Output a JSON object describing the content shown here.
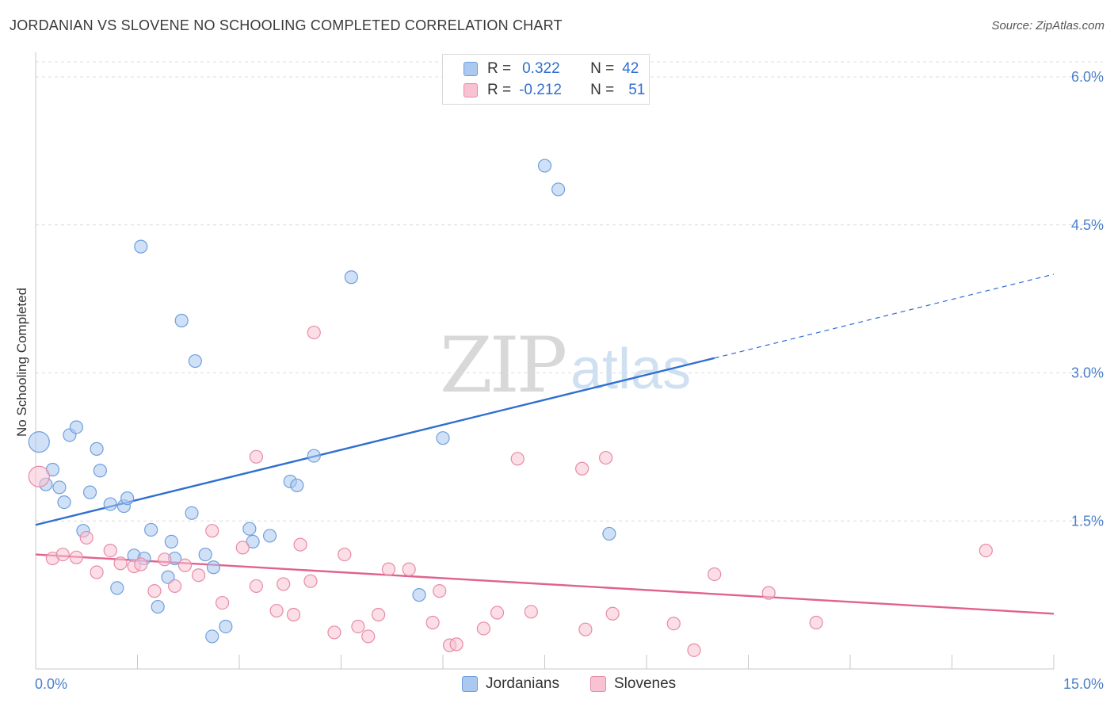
{
  "header": {
    "title": "JORDANIAN VS SLOVENE NO SCHOOLING COMPLETED CORRELATION CHART",
    "source": "Source: ZipAtlas.com"
  },
  "watermark": {
    "zip": "ZIP",
    "atlas": "atlas"
  },
  "legend": {
    "rows": [
      {
        "r_label": "R =",
        "r_value": "0.322",
        "n_label": "N =",
        "n_value": "42",
        "color": "#aac8f0",
        "border": "#6f9fdc"
      },
      {
        "r_label": "R =",
        "r_value": "-0.212",
        "n_label": "N =",
        "n_value": "51",
        "color": "#f8c2d2",
        "border": "#e78ba7"
      }
    ]
  },
  "bottom_legend": {
    "series1": "Jordanians",
    "series2": "Slovenes"
  },
  "chart_data": {
    "type": "scatter",
    "title": "JORDANIAN VS SLOVENE NO SCHOOLING COMPLETED CORRELATION CHART",
    "xlabel": "",
    "ylabel": "No Schooling Completed",
    "xlim": [
      0,
      15
    ],
    "ylim": [
      0,
      6.0
    ],
    "x_tick_labels": [
      "0.0%",
      "15.0%"
    ],
    "y_ticks": [
      1.5,
      3.0,
      4.5,
      6.0
    ],
    "y_tick_labels": [
      "1.5%",
      "3.0%",
      "4.5%",
      "6.0%"
    ],
    "grid": true,
    "legend_position": "top-center",
    "series": [
      {
        "name": "Jordanians",
        "color": "#6f9fdc",
        "fill": "#aac8f0",
        "trend": {
          "x0": 0,
          "y0": 1.46,
          "x1": 10.0,
          "y1": 3.15,
          "dash_to_x": 15.0,
          "dash_to_y": 4.0
        },
        "points": [
          [
            0.05,
            2.3
          ],
          [
            0.15,
            1.87
          ],
          [
            0.25,
            2.02
          ],
          [
            0.35,
            1.84
          ],
          [
            0.42,
            1.69
          ],
          [
            0.5,
            2.37
          ],
          [
            0.6,
            2.45
          ],
          [
            0.7,
            1.4
          ],
          [
            0.8,
            1.79
          ],
          [
            0.9,
            2.23
          ],
          [
            0.95,
            2.01
          ],
          [
            1.1,
            1.67
          ],
          [
            1.2,
            0.82
          ],
          [
            1.3,
            1.65
          ],
          [
            1.35,
            1.73
          ],
          [
            1.45,
            1.15
          ],
          [
            1.55,
            4.28
          ],
          [
            1.6,
            1.12
          ],
          [
            1.7,
            1.41
          ],
          [
            1.8,
            0.63
          ],
          [
            1.95,
            0.93
          ],
          [
            2.0,
            1.29
          ],
          [
            2.05,
            1.12
          ],
          [
            2.15,
            3.53
          ],
          [
            2.3,
            1.58
          ],
          [
            2.35,
            3.12
          ],
          [
            2.5,
            1.16
          ],
          [
            2.6,
            0.33
          ],
          [
            2.62,
            1.03
          ],
          [
            2.8,
            0.43
          ],
          [
            3.15,
            1.42
          ],
          [
            3.2,
            1.29
          ],
          [
            3.45,
            1.35
          ],
          [
            3.75,
            1.9
          ],
          [
            3.85,
            1.86
          ],
          [
            4.1,
            2.16
          ],
          [
            4.65,
            3.97
          ],
          [
            5.65,
            0.75
          ],
          [
            6.0,
            2.34
          ],
          [
            7.5,
            5.1
          ],
          [
            7.7,
            4.86
          ],
          [
            8.45,
            1.37
          ]
        ]
      },
      {
        "name": "Slovenes",
        "color": "#e78ba7",
        "fill": "#f8c2d2",
        "trend": {
          "x0": 0,
          "y0": 1.16,
          "x1": 15.0,
          "y1": 0.56
        },
        "points": [
          [
            0.05,
            1.95
          ],
          [
            0.25,
            1.12
          ],
          [
            0.4,
            1.16
          ],
          [
            0.6,
            1.13
          ],
          [
            0.75,
            1.33
          ],
          [
            0.9,
            0.98
          ],
          [
            1.1,
            1.2
          ],
          [
            1.25,
            1.07
          ],
          [
            1.45,
            1.04
          ],
          [
            1.55,
            1.06
          ],
          [
            1.75,
            0.79
          ],
          [
            1.9,
            1.11
          ],
          [
            2.05,
            0.84
          ],
          [
            2.2,
            1.05
          ],
          [
            2.4,
            0.95
          ],
          [
            2.6,
            1.4
          ],
          [
            2.75,
            0.67
          ],
          [
            3.05,
            1.23
          ],
          [
            3.25,
            0.84
          ],
          [
            3.25,
            2.15
          ],
          [
            3.55,
            0.59
          ],
          [
            3.65,
            0.86
          ],
          [
            3.8,
            0.55
          ],
          [
            3.9,
            1.26
          ],
          [
            4.05,
            0.89
          ],
          [
            4.1,
            3.41
          ],
          [
            4.4,
            0.37
          ],
          [
            4.55,
            1.16
          ],
          [
            4.75,
            0.43
          ],
          [
            4.9,
            0.33
          ],
          [
            5.05,
            0.55
          ],
          [
            5.2,
            1.01
          ],
          [
            5.5,
            1.01
          ],
          [
            5.85,
            0.47
          ],
          [
            5.95,
            0.79
          ],
          [
            6.1,
            0.24
          ],
          [
            6.2,
            0.25
          ],
          [
            6.6,
            0.41
          ],
          [
            6.8,
            0.57
          ],
          [
            7.1,
            2.13
          ],
          [
            7.3,
            0.58
          ],
          [
            8.05,
            2.03
          ],
          [
            8.1,
            0.4
          ],
          [
            8.4,
            2.14
          ],
          [
            8.5,
            0.56
          ],
          [
            9.4,
            0.46
          ],
          [
            9.7,
            0.19
          ],
          [
            10.0,
            0.96
          ],
          [
            10.8,
            0.77
          ],
          [
            11.5,
            0.47
          ],
          [
            14.0,
            1.2
          ]
        ]
      }
    ]
  }
}
